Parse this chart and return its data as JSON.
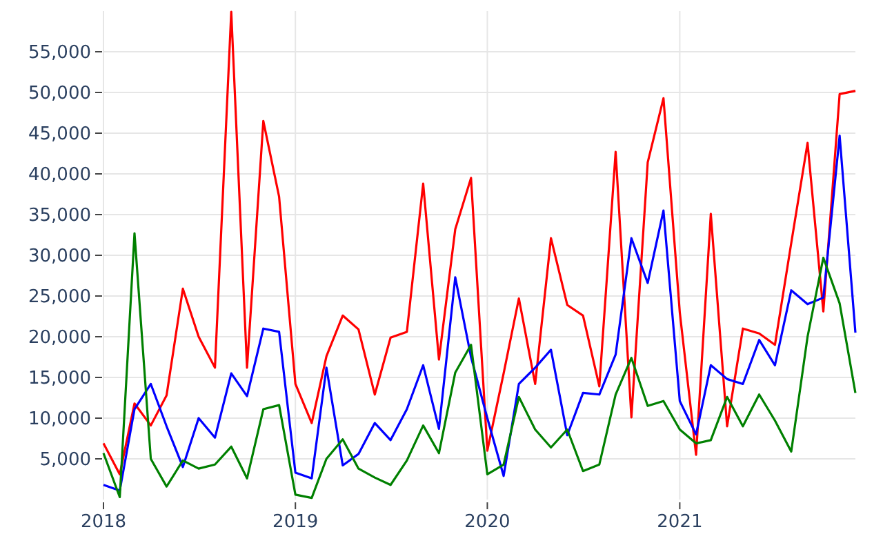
{
  "chart_data": {
    "type": "line",
    "x": [
      "2018-01",
      "2018-02",
      "2018-03",
      "2018-04",
      "2018-05",
      "2018-06",
      "2018-07",
      "2018-08",
      "2018-09",
      "2018-10",
      "2018-11",
      "2018-12",
      "2019-01",
      "2019-02",
      "2019-03",
      "2019-04",
      "2019-05",
      "2019-06",
      "2019-07",
      "2019-08",
      "2019-09",
      "2019-10",
      "2019-11",
      "2019-12",
      "2020-01",
      "2020-02",
      "2020-03",
      "2020-04",
      "2020-05",
      "2020-06",
      "2020-07",
      "2020-08",
      "2020-09",
      "2020-10",
      "2020-11",
      "2020-12",
      "2021-01",
      "2021-02",
      "2021-03",
      "2021-04",
      "2021-05",
      "2021-06",
      "2021-07",
      "2021-08",
      "2021-09",
      "2021-10",
      "2021-11",
      "2021-12"
    ],
    "series": [
      {
        "color": "#ff0000",
        "values": [
          6900,
          3100,
          11800,
          9100,
          12800,
          25900,
          20000,
          16200,
          59900,
          16200,
          46500,
          37200,
          14200,
          9400,
          17600,
          22600,
          20900,
          12900,
          19900,
          20600,
          38800,
          17200,
          33200,
          39500,
          6000,
          15500,
          24700,
          14200,
          32100,
          23900,
          22600,
          13900,
          42700,
          10100,
          41400,
          49300,
          23000,
          5500,
          35100,
          9000,
          21000,
          20400,
          19000,
          31500,
          43800,
          23100,
          49800,
          50200
        ]
      },
      {
        "color": "#0000ff",
        "values": [
          1800,
          1100,
          11100,
          14200,
          9000,
          4000,
          10000,
          7600,
          15500,
          12700,
          21000,
          20600,
          3300,
          2600,
          16200,
          4200,
          5600,
          9400,
          7300,
          11100,
          16500,
          8700,
          27300,
          17500,
          10000,
          2900,
          14200,
          16200,
          18400,
          7900,
          13100,
          12900,
          17800,
          32100,
          26600,
          35500,
          12100,
          8000,
          16500,
          14800,
          14200,
          19600,
          16500,
          25700,
          24000,
          24800,
          44700,
          20500
        ]
      },
      {
        "color": "#008000",
        "values": [
          5700,
          300,
          32700,
          5000,
          1600,
          4800,
          3800,
          4300,
          6500,
          2600,
          11100,
          11600,
          600,
          200,
          5000,
          7400,
          3800,
          2700,
          1800,
          4800,
          9100,
          5700,
          15600,
          19000,
          3100,
          4300,
          12600,
          8600,
          6400,
          8600,
          3500,
          4300,
          12900,
          17400,
          11500,
          12100,
          8600,
          6900,
          7300,
          12600,
          9000,
          12900,
          9700,
          5900,
          20000,
          29700,
          24100,
          13100
        ]
      }
    ],
    "xlim": [
      "2018-01",
      "2021-12"
    ],
    "xticks": [
      {
        "value": "2018-01",
        "label": "2018"
      },
      {
        "value": "2019-01",
        "label": "2019"
      },
      {
        "value": "2020-01",
        "label": "2020"
      },
      {
        "value": "2021-01",
        "label": "2021"
      }
    ],
    "ylim": [
      0,
      60000
    ],
    "yticks": [
      {
        "value": 5000,
        "label": "5,000"
      },
      {
        "value": 10000,
        "label": "10,000"
      },
      {
        "value": 15000,
        "label": "15,000"
      },
      {
        "value": 20000,
        "label": "20,000"
      },
      {
        "value": 25000,
        "label": "25,000"
      },
      {
        "value": 30000,
        "label": "30,000"
      },
      {
        "value": 35000,
        "label": "35,000"
      },
      {
        "value": 40000,
        "label": "40,000"
      },
      {
        "value": 45000,
        "label": "45,000"
      },
      {
        "value": 50000,
        "label": "50,000"
      },
      {
        "value": 55000,
        "label": "55,000"
      }
    ],
    "grid": true
  }
}
